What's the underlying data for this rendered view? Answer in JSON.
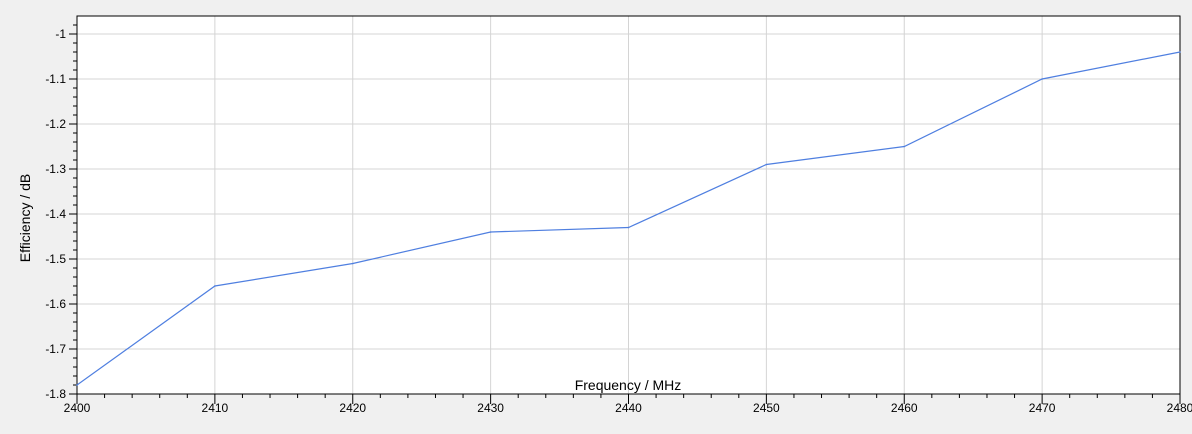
{
  "chart_data": {
    "type": "line",
    "xlabel": "Frequency / MHz",
    "ylabel": "Efficiency / dB",
    "xlim": [
      2400,
      2480
    ],
    "ylim": [
      -1.8,
      -0.96
    ],
    "x_ticks": [
      2400,
      2410,
      2420,
      2430,
      2440,
      2450,
      2460,
      2470,
      2480
    ],
    "y_ticks": [
      -1.8,
      -1.7,
      -1.6,
      -1.5,
      -1.4,
      -1.3,
      -1.2,
      -1.1,
      -1
    ],
    "x_tick_labels": [
      "2400",
      "2410",
      "2420",
      "2430",
      "2440",
      "2450",
      "2460",
      "2470",
      "2480"
    ],
    "y_tick_labels": [
      "-1.8",
      "-1.7",
      "-1.6",
      "-1.5",
      "-1.4",
      "-1.3",
      "-1.2",
      "-1.1",
      "-1"
    ],
    "grid": true,
    "series": [
      {
        "color": "#4f7fe0",
        "x": [
          2400,
          2410,
          2420,
          2430,
          2440,
          2450,
          2460,
          2470,
          2480
        ],
        "values": [
          -1.78,
          -1.56,
          -1.51,
          -1.44,
          -1.43,
          -1.29,
          -1.25,
          -1.1,
          -1.04
        ]
      }
    ]
  }
}
